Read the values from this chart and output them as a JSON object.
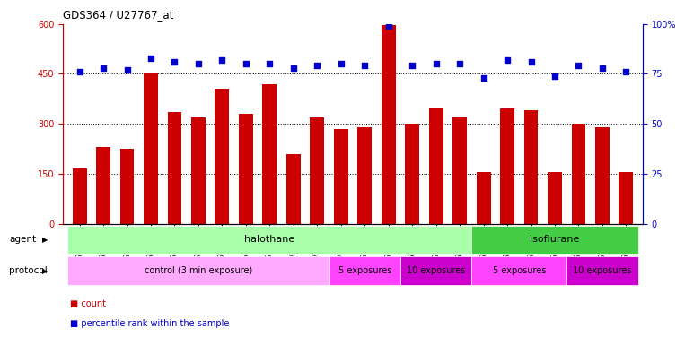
{
  "title": "GDS364 / U27767_at",
  "samples": [
    "GSM5082",
    "GSM5084",
    "GSM5085",
    "GSM5086",
    "GSM5087",
    "GSM5090",
    "GSM5105",
    "GSM5106",
    "GSM5107",
    "GSM11379",
    "GSM11380",
    "GSM11381",
    "GSM5111",
    "GSM5112",
    "GSM5113",
    "GSM5108",
    "GSM5109",
    "GSM5110",
    "GSM5117",
    "GSM5118",
    "GSM5119",
    "GSM5114",
    "GSM5115",
    "GSM5116"
  ],
  "counts": [
    165,
    230,
    225,
    450,
    335,
    320,
    405,
    330,
    420,
    210,
    320,
    285,
    290,
    595,
    300,
    350,
    320,
    155,
    345,
    340,
    155,
    300,
    290,
    155
  ],
  "percentiles": [
    76,
    78,
    77,
    83,
    81,
    80,
    82,
    80,
    80,
    78,
    79,
    80,
    79,
    99,
    79,
    80,
    80,
    73,
    82,
    81,
    74,
    79,
    78,
    76
  ],
  "bar_color": "#cc0000",
  "dot_color": "#0000cc",
  "ylim_left": [
    0,
    600
  ],
  "ylim_right": [
    0,
    100
  ],
  "yticks_left": [
    0,
    150,
    300,
    450,
    600
  ],
  "yticks_right": [
    0,
    25,
    50,
    75,
    100
  ],
  "ytick_labels_right": [
    "0",
    "25",
    "50",
    "75",
    "100%"
  ],
  "agent_groups": [
    {
      "label": "halothane",
      "start": 0,
      "end": 17,
      "color": "#aaffaa"
    },
    {
      "label": "isoflurane",
      "start": 17,
      "end": 24,
      "color": "#44cc44"
    }
  ],
  "protocol_groups": [
    {
      "label": "control (3 min exposure)",
      "start": 0,
      "end": 11,
      "color": "#ffaaff"
    },
    {
      "label": "5 exposures",
      "start": 11,
      "end": 14,
      "color": "#ff44ff"
    },
    {
      "label": "10 exposures",
      "start": 14,
      "end": 17,
      "color": "#cc00cc"
    },
    {
      "label": "5 exposures",
      "start": 17,
      "end": 21,
      "color": "#ff44ff"
    },
    {
      "label": "10 exposures",
      "start": 21,
      "end": 24,
      "color": "#cc00cc"
    }
  ],
  "legend_items": [
    {
      "label": "count",
      "color": "#cc0000"
    },
    {
      "label": "percentile rank within the sample",
      "color": "#0000cc"
    }
  ],
  "agent_label": "agent",
  "protocol_label": "protocol",
  "background_color": "#ffffff",
  "dot_size": 25,
  "bar_width": 0.6
}
